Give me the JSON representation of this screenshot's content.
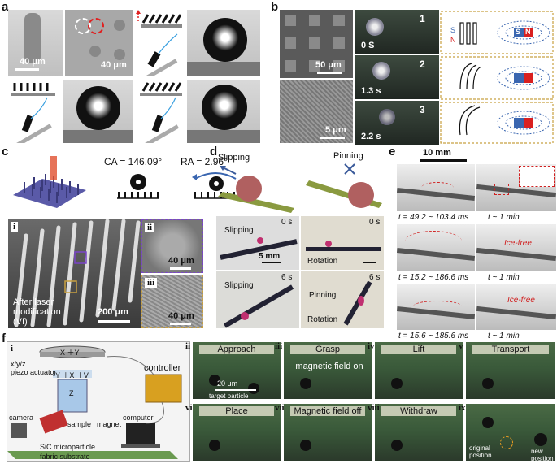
{
  "panels": {
    "a": {
      "label": "a",
      "scale1": "40 μm",
      "scale2": "40 μm"
    },
    "b": {
      "label": "b",
      "scale1": "50 μm",
      "scale2": "5 μm",
      "frames": [
        {
          "num": "1",
          "time": "0 S"
        },
        {
          "num": "2",
          "time": "1.3 s"
        },
        {
          "num": "3",
          "time": "2.2 s"
        }
      ],
      "magnet_s": "S",
      "magnet_n": "N"
    },
    "c": {
      "label": "c",
      "ca": "CA = 146.09°",
      "ra": "RA = 2.96°",
      "sub_i": "i",
      "sub_ii": "ii",
      "sub_iii": "iii",
      "caption": "After laser modification (VI)",
      "scale1": "200 μm",
      "scale2": "40 μm",
      "scale3": "40 μm"
    },
    "d": {
      "label": "d",
      "slipping": "Slipping",
      "pinning": "Pinning",
      "t0a": "0 s",
      "t0b": "0 s",
      "t6a": "6 s",
      "t6b": "6 s",
      "scale": "5 mm",
      "rotation": "Rotation",
      "slip_a": "Slipping",
      "slip_b": "Slipping",
      "pin_b": "Pinning",
      "rot_b": "Rotation"
    },
    "e": {
      "label": "e",
      "scale": "10 mm",
      "rows": [
        {
          "t": "t = 49.2 ~ 103.4 ms",
          "t2": "t ~ 1 min",
          "tag": ""
        },
        {
          "t": "t = 15.2 ~ 186.6 ms",
          "t2": "t ~ 1 min",
          "tag": "Ice-free"
        },
        {
          "t": "t = 15.6 ~ 185.6 ms",
          "t2": "t ~ 1 min",
          "tag": "Ice-free"
        }
      ]
    },
    "f": {
      "label": "f",
      "sub_i": "i",
      "axes1": "-X ＋Y",
      "xyz": "x/y/z",
      "piezo": "piezo actuator",
      "axes2": "-Y ＋X ＋V",
      "z": "Z",
      "controller": "controller",
      "camera": "camera",
      "sample": "sample",
      "magnet": "magnet",
      "computer": "computer",
      "sic": "SiC microparticle",
      "fabric": "fabric substrate",
      "steps": [
        {
          "num": "ii",
          "title": "Approach"
        },
        {
          "num": "iii",
          "title": "Grasp"
        },
        {
          "num": "iv",
          "title": "Lift"
        },
        {
          "num": "v",
          "title": "Transport"
        },
        {
          "num": "vi",
          "title": "Place"
        },
        {
          "num": "vii",
          "title": "Magnetic field off"
        },
        {
          "num": "viii",
          "title": "Withdraw"
        },
        {
          "num": "ix",
          "title": ""
        }
      ],
      "mag_on": "magnetic field on",
      "scale": "20 μm",
      "target": "target particle",
      "original": "original position",
      "newpos": "new position"
    }
  },
  "colors": {
    "magnet_blue": "#3a66b0",
    "magnet_red": "#d92020",
    "arrow_orange": "#f0a020",
    "dash_gold": "#c8a040",
    "purple": "#7a44c8"
  }
}
